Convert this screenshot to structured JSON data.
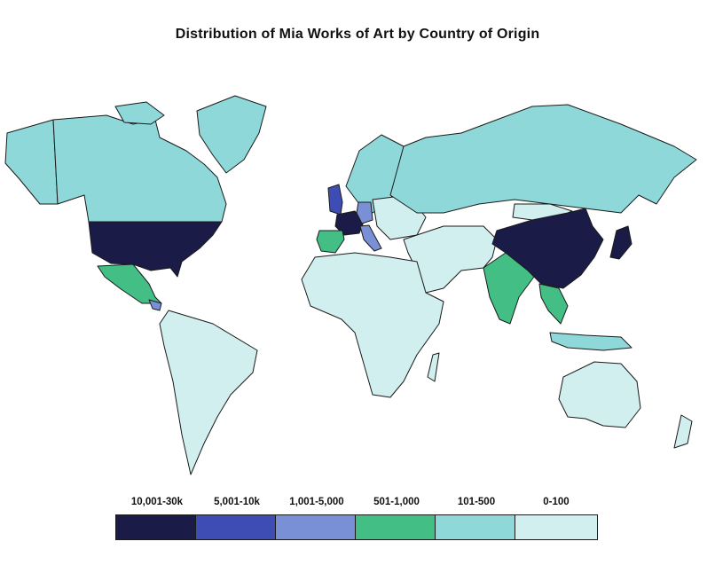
{
  "title": "Distribution of Mia Works of Art by Country of Origin",
  "colors": {
    "c1": "#1b1b47",
    "c2": "#3d4db3",
    "c3": "#7a90d6",
    "c4": "#43bf86",
    "c5": "#8fd8da",
    "c6": "#d2eff0"
  },
  "legend": [
    {
      "label": "10,001-30k",
      "color": "#1b1b47"
    },
    {
      "label": "5,001-10k",
      "color": "#3d4db3"
    },
    {
      "label": "1,001-5,000",
      "color": "#7a90d6"
    },
    {
      "label": "501-1,000",
      "color": "#43bf86"
    },
    {
      "label": "101-500",
      "color": "#8fd8da"
    },
    {
      "label": "0-100",
      "color": "#d2eff0"
    }
  ],
  "regions": [
    {
      "name": "Canada",
      "bin": "101-500"
    },
    {
      "name": "Alaska",
      "bin": "101-500"
    },
    {
      "name": "Greenland",
      "bin": "101-500"
    },
    {
      "name": "United States",
      "bin": "10,001-30k"
    },
    {
      "name": "Mexico",
      "bin": "501-1,000"
    },
    {
      "name": "Central America",
      "bin": "1,001-5,000"
    },
    {
      "name": "South America",
      "bin": "0-100"
    },
    {
      "name": "United Kingdom",
      "bin": "5,001-10k"
    },
    {
      "name": "France",
      "bin": "10,001-30k"
    },
    {
      "name": "Spain",
      "bin": "501-1,000"
    },
    {
      "name": "Germany",
      "bin": "1,001-5,000"
    },
    {
      "name": "Italy",
      "bin": "1,001-5,000"
    },
    {
      "name": "Scandinavia",
      "bin": "101-500"
    },
    {
      "name": "Russia",
      "bin": "101-500"
    },
    {
      "name": "Africa",
      "bin": "0-100"
    },
    {
      "name": "Middle East",
      "bin": "0-100"
    },
    {
      "name": "India",
      "bin": "501-1,000"
    },
    {
      "name": "China",
      "bin": "10,001-30k"
    },
    {
      "name": "Japan",
      "bin": "10,001-30k"
    },
    {
      "name": "Southeast Asia",
      "bin": "501-1,000"
    },
    {
      "name": "Indonesia",
      "bin": "101-500"
    },
    {
      "name": "Australia",
      "bin": "0-100"
    },
    {
      "name": "New Zealand",
      "bin": "0-100"
    }
  ]
}
